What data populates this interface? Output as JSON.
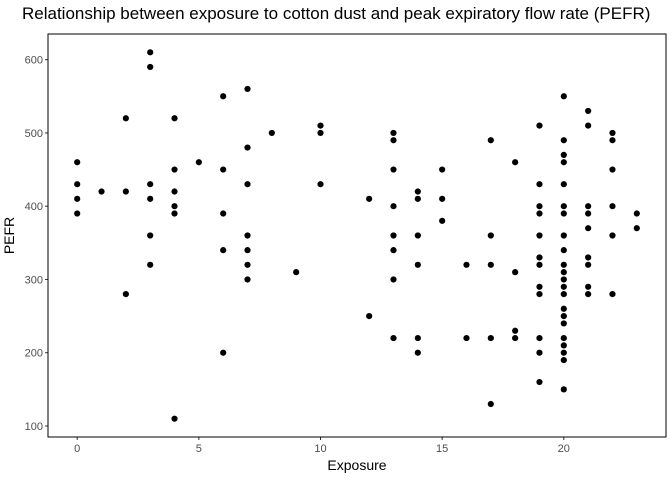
{
  "chart_data": {
    "type": "scatter",
    "title": "Relationship between exposure to cotton dust and peak expiratory flow rate (PEFR)",
    "xlabel": "Exposure",
    "ylabel": "PEFR",
    "xlim": [
      -1.2,
      24.2
    ],
    "ylim": [
      85,
      635
    ],
    "xticks": [
      0,
      5,
      10,
      15,
      20
    ],
    "yticks": [
      100,
      200,
      300,
      400,
      500,
      600
    ],
    "grid": false,
    "frame": "full-border",
    "point_color": "#000000",
    "points": [
      [
        0,
        460
      ],
      [
        0,
        430
      ],
      [
        0,
        410
      ],
      [
        0,
        390
      ],
      [
        1,
        420
      ],
      [
        2,
        520
      ],
      [
        2,
        420
      ],
      [
        2,
        280
      ],
      [
        3,
        610
      ],
      [
        3,
        590
      ],
      [
        3,
        430
      ],
      [
        3,
        410
      ],
      [
        3,
        360
      ],
      [
        3,
        320
      ],
      [
        4,
        520
      ],
      [
        4,
        450
      ],
      [
        4,
        420
      ],
      [
        4,
        400
      ],
      [
        4,
        390
      ],
      [
        4,
        110
      ],
      [
        5,
        460
      ],
      [
        6,
        550
      ],
      [
        6,
        450
      ],
      [
        6,
        390
      ],
      [
        6,
        340
      ],
      [
        6,
        200
      ],
      [
        7,
        560
      ],
      [
        7,
        480
      ],
      [
        7,
        430
      ],
      [
        7,
        360
      ],
      [
        7,
        340
      ],
      [
        7,
        320
      ],
      [
        7,
        300
      ],
      [
        8,
        500
      ],
      [
        9,
        310
      ],
      [
        10,
        510
      ],
      [
        10,
        500
      ],
      [
        10,
        430
      ],
      [
        12,
        410
      ],
      [
        12,
        250
      ],
      [
        13,
        500
      ],
      [
        13,
        490
      ],
      [
        13,
        450
      ],
      [
        13,
        400
      ],
      [
        13,
        360
      ],
      [
        13,
        340
      ],
      [
        13,
        300
      ],
      [
        13,
        220
      ],
      [
        14,
        420
      ],
      [
        14,
        410
      ],
      [
        14,
        360
      ],
      [
        14,
        320
      ],
      [
        14,
        220
      ],
      [
        14,
        200
      ],
      [
        15,
        450
      ],
      [
        15,
        410
      ],
      [
        15,
        380
      ],
      [
        16,
        320
      ],
      [
        16,
        220
      ],
      [
        17,
        490
      ],
      [
        17,
        360
      ],
      [
        17,
        320
      ],
      [
        17,
        220
      ],
      [
        17,
        130
      ],
      [
        18,
        460
      ],
      [
        18,
        310
      ],
      [
        18,
        230
      ],
      [
        18,
        220
      ],
      [
        19,
        510
      ],
      [
        19,
        430
      ],
      [
        19,
        400
      ],
      [
        19,
        390
      ],
      [
        19,
        360
      ],
      [
        19,
        330
      ],
      [
        19,
        320
      ],
      [
        19,
        290
      ],
      [
        19,
        280
      ],
      [
        19,
        220
      ],
      [
        19,
        200
      ],
      [
        19,
        160
      ],
      [
        20,
        550
      ],
      [
        20,
        490
      ],
      [
        20,
        470
      ],
      [
        20,
        460
      ],
      [
        20,
        430
      ],
      [
        20,
        400
      ],
      [
        20,
        390
      ],
      [
        20,
        360
      ],
      [
        20,
        340
      ],
      [
        20,
        320
      ],
      [
        20,
        310
      ],
      [
        20,
        300
      ],
      [
        20,
        290
      ],
      [
        20,
        280
      ],
      [
        20,
        260
      ],
      [
        20,
        250
      ],
      [
        20,
        240
      ],
      [
        20,
        220
      ],
      [
        20,
        210
      ],
      [
        20,
        200
      ],
      [
        20,
        190
      ],
      [
        20,
        150
      ],
      [
        21,
        530
      ],
      [
        21,
        510
      ],
      [
        21,
        400
      ],
      [
        21,
        390
      ],
      [
        21,
        370
      ],
      [
        21,
        330
      ],
      [
        21,
        320
      ],
      [
        21,
        290
      ],
      [
        21,
        280
      ],
      [
        22,
        500
      ],
      [
        22,
        490
      ],
      [
        22,
        450
      ],
      [
        22,
        400
      ],
      [
        22,
        360
      ],
      [
        22,
        280
      ],
      [
        23,
        390
      ],
      [
        23,
        370
      ]
    ]
  }
}
